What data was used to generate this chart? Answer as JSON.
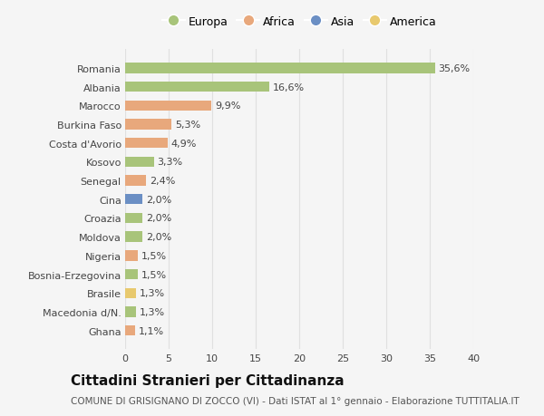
{
  "categories": [
    "Romania",
    "Albania",
    "Marocco",
    "Burkina Faso",
    "Costa d'Avorio",
    "Kosovo",
    "Senegal",
    "Cina",
    "Croazia",
    "Moldova",
    "Nigeria",
    "Bosnia-Erzegovina",
    "Brasile",
    "Macedonia d/N.",
    "Ghana"
  ],
  "values": [
    35.6,
    16.6,
    9.9,
    5.3,
    4.9,
    3.3,
    2.4,
    2.0,
    2.0,
    2.0,
    1.5,
    1.5,
    1.3,
    1.3,
    1.1
  ],
  "labels": [
    "35,6%",
    "16,6%",
    "9,9%",
    "5,3%",
    "4,9%",
    "3,3%",
    "2,4%",
    "2,0%",
    "2,0%",
    "2,0%",
    "1,5%",
    "1,5%",
    "1,3%",
    "1,3%",
    "1,1%"
  ],
  "colors": [
    "#a8c47a",
    "#a8c47a",
    "#e8a87c",
    "#e8a87c",
    "#e8a87c",
    "#a8c47a",
    "#e8a87c",
    "#6b8fc4",
    "#a8c47a",
    "#a8c47a",
    "#e8a87c",
    "#a8c47a",
    "#e8c96e",
    "#a8c47a",
    "#e8a87c"
  ],
  "legend": [
    {
      "label": "Europa",
      "color": "#a8c47a"
    },
    {
      "label": "Africa",
      "color": "#e8a87c"
    },
    {
      "label": "Asia",
      "color": "#6b8fc4"
    },
    {
      "label": "America",
      "color": "#e8c96e"
    }
  ],
  "xlim": [
    0,
    40
  ],
  "xticks": [
    0,
    5,
    10,
    15,
    20,
    25,
    30,
    35,
    40
  ],
  "title": "Cittadini Stranieri per Cittadinanza",
  "subtitle": "COMUNE DI GRISIGNANO DI ZOCCO (VI) - Dati ISTAT al 1° gennaio - Elaborazione TUTTITALIA.IT",
  "background_color": "#f5f5f5",
  "plot_bg_color": "#f5f5f5",
  "grid_color": "#e0e0e0",
  "bar_height": 0.55,
  "title_fontsize": 11,
  "subtitle_fontsize": 7.5,
  "label_fontsize": 8,
  "tick_fontsize": 8,
  "legend_fontsize": 9
}
